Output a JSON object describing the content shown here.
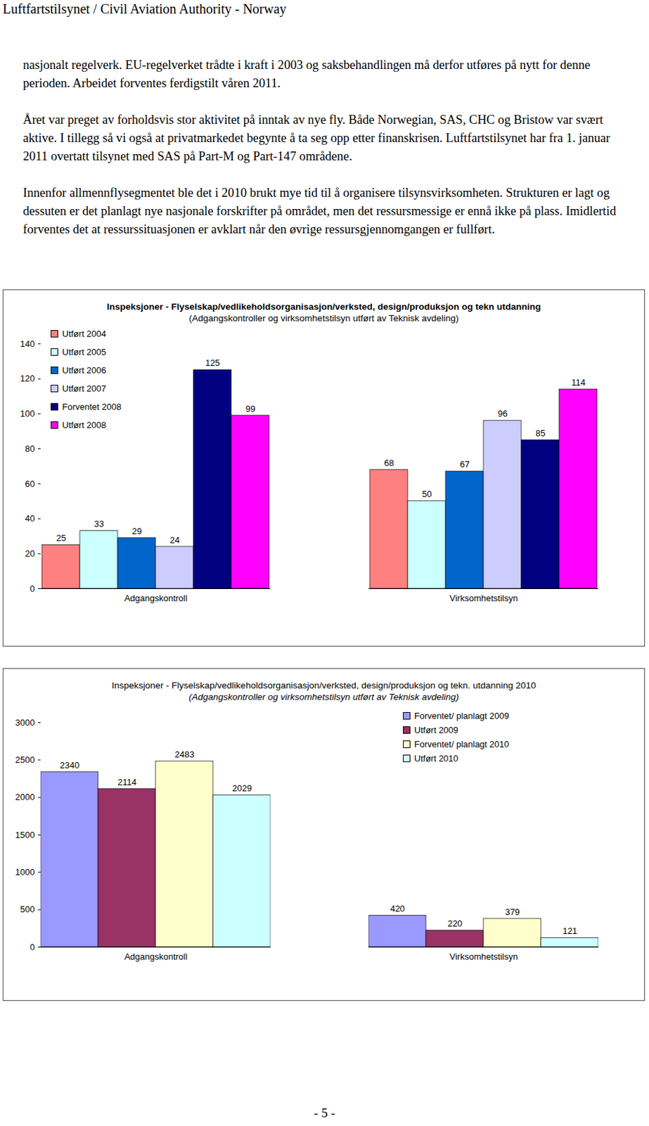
{
  "header": "Luftfartstilsynet / Civil Aviation Authority - Norway",
  "paragraphs": [
    "nasjonalt regelverk. EU-regelverket trådte i kraft i 2003 og saksbehandlingen må derfor utføres på nytt for denne perioden. Arbeidet forventes ferdigstilt våren 2011.",
    "Året var preget av forholdsvis stor aktivitet på inntak av nye fly. Både Norwegian, SAS, CHC og Bristow var svært aktive. I tillegg så vi også at privatmarkedet begynte å ta seg opp etter finanskrisen. Luftfartstilsynet har fra 1. januar 2011 overtatt tilsynet med SAS på Part-M og Part-147 områdene.",
    "Innenfor allmennflysegmentet ble det i 2010 brukt mye tid til å organisere tilsynsvirksomheten. Strukturen er lagt og dessuten er det planlagt nye nasjonale forskrifter på området, men det ressursmessige er ennå ikke på plass. Imidlertid forventes det at ressurssituasjonen er avklart når den øvrige ressursgjennomgangen er fullført."
  ],
  "chart_data": [
    {
      "type": "bar",
      "title": "Inspeksjoner  -  Flyselskap/vedlikeholdsorganisasjon/verksted, design/produksjon og tekn utdanning",
      "subtitle": "(Adgangskontroller og virksomhetstilsyn utført av Teknisk avdeling)",
      "categories": [
        "Adgangskontroll",
        "Virksomhetstilsyn"
      ],
      "series": [
        {
          "name": "Utført 2004",
          "color": "#ff8080",
          "values": [
            25,
            68
          ]
        },
        {
          "name": "Utført 2005",
          "color": "#ccffff",
          "values": [
            33,
            50
          ]
        },
        {
          "name": "Utført 2006",
          "color": "#0066cc",
          "values": [
            29,
            67
          ]
        },
        {
          "name": "Utført 2007",
          "color": "#ccccff",
          "values": [
            24,
            96
          ]
        },
        {
          "name": "Forventet 2008",
          "color": "#000080",
          "values": [
            125,
            85
          ]
        },
        {
          "name": "Utført 2008",
          "color": "#ff00ff",
          "values": [
            99,
            114
          ]
        }
      ],
      "ylim": [
        0,
        140
      ],
      "yticks": [
        0,
        20,
        40,
        60,
        80,
        100,
        120,
        140
      ],
      "data_labels": true,
      "legend": "top-left",
      "grid": false
    },
    {
      "type": "bar",
      "title": "Inspeksjoner  -  Flyselskap/vedlikeholdsorganisasjon/verksted, design/produksjon og tekn. utdanning 2010",
      "subtitle": "(Adgangskontroller og virksomhetstilsyn utført av Teknisk avdeling)",
      "categories": [
        "Adgangskontroll",
        "Virksomhetstilsyn"
      ],
      "series": [
        {
          "name": "Forventet/ planlagt 2009",
          "color": "#9999ff",
          "values": [
            2340,
            420
          ]
        },
        {
          "name": "Utført 2009",
          "color": "#993366",
          "values": [
            2114,
            220
          ]
        },
        {
          "name": "Forventet/ planlagt 2010",
          "color": "#ffffcc",
          "values": [
            2483,
            379
          ]
        },
        {
          "name": "Utført 2010",
          "color": "#ccffff",
          "values": [
            2029,
            121
          ]
        }
      ],
      "ylim": [
        0,
        3000
      ],
      "yticks": [
        0,
        500,
        1000,
        1500,
        2000,
        2500,
        3000
      ],
      "data_labels": true,
      "legend": "top-right",
      "grid": false
    }
  ],
  "footer": "- 5 -"
}
